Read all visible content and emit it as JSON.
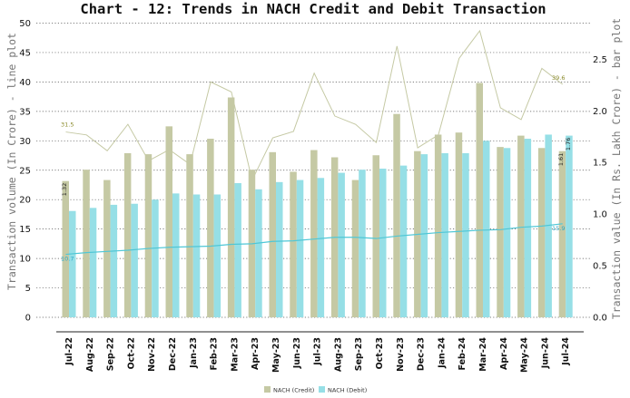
{
  "chart_data": {
    "type": "bar",
    "title": "Chart - 12: Trends in NACH Credit and Debit Transaction",
    "ylabel_left": "Transaction volume (In Crore) - line plot",
    "ylabel_right": "Transaction value (In Rs. Lakh Crore) - bar plot",
    "ylim_left": [
      0,
      50
    ],
    "ylim_right": [
      0,
      2.85
    ],
    "yticks_left": [
      "0",
      "5",
      "10",
      "15",
      "20",
      "25",
      "30",
      "35",
      "40",
      "45",
      "50"
    ],
    "yticks_right": [
      "0.0",
      "0.5",
      "1.0",
      "1.5",
      "2.0",
      "2.5"
    ],
    "grid": true,
    "legend_position": "bottom-center",
    "categories": [
      "Jul-22",
      "Aug-22",
      "Sep-22",
      "Oct-22",
      "Nov-22",
      "Dec-22",
      "Jan-23",
      "Feb-23",
      "Mar-23",
      "Apr-23",
      "May-23",
      "Jun-23",
      "Jul-23",
      "Aug-23",
      "Sep-23",
      "Oct-23",
      "Nov-23",
      "Dec-23",
      "Jan-24",
      "Feb-24",
      "Mar-24",
      "Apr-24",
      "May-24",
      "Jun-24",
      "Jul-24"
    ],
    "bar_series": [
      {
        "name": "NACH (Credit)",
        "color": "#c5c9a4",
        "axis": "right",
        "values": [
          1.32,
          1.43,
          1.33,
          1.59,
          1.58,
          1.85,
          1.58,
          1.73,
          2.13,
          1.43,
          1.6,
          1.41,
          1.62,
          1.55,
          1.33,
          1.57,
          1.97,
          1.61,
          1.77,
          1.79,
          2.27,
          1.65,
          1.76,
          1.64,
          1.61
        ]
      },
      {
        "name": "NACH (Debit)",
        "color": "#96dfe6",
        "axis": "right",
        "values": [
          1.03,
          1.06,
          1.09,
          1.1,
          1.14,
          1.2,
          1.19,
          1.19,
          1.3,
          1.24,
          1.31,
          1.33,
          1.35,
          1.4,
          1.43,
          1.44,
          1.47,
          1.58,
          1.59,
          1.59,
          1.71,
          1.64,
          1.73,
          1.77,
          1.76
        ]
      }
    ],
    "line_series": [
      {
        "name": "NACH (Credit)",
        "color": "#c5c9a4",
        "axis": "left",
        "values": [
          31.5,
          31.0,
          28.3,
          32.8,
          26.6,
          28.5,
          26.0,
          40.0,
          38.3,
          23.3,
          30.5,
          31.6,
          41.5,
          34.2,
          32.8,
          29.7,
          46.1,
          28.8,
          31.0,
          44.0,
          48.7,
          35.6,
          33.6,
          42.3,
          39.6
        ]
      },
      {
        "name": "NACH (Debit)",
        "color": "#4fc7d6",
        "axis": "left",
        "values": [
          10.7,
          11.0,
          11.2,
          11.4,
          11.7,
          11.9,
          12.0,
          12.1,
          12.4,
          12.5,
          12.9,
          13.0,
          13.3,
          13.6,
          13.6,
          13.4,
          13.8,
          14.1,
          14.4,
          14.6,
          14.8,
          14.9,
          15.3,
          15.5,
          15.9
        ]
      }
    ],
    "data_labels": [
      {
        "text": "31.5",
        "color": "#8a8a2a"
      },
      {
        "text": "10.7",
        "color": "#2aa9c9"
      },
      {
        "text": "1.32",
        "color": "#222222"
      },
      {
        "text": "39.6",
        "color": "#8a8a2a"
      },
      {
        "text": "15.9",
        "color": "#2aa9c9"
      },
      {
        "text": "1.61",
        "color": "#222222"
      },
      {
        "text": "1.76",
        "color": "#222222"
      }
    ]
  }
}
